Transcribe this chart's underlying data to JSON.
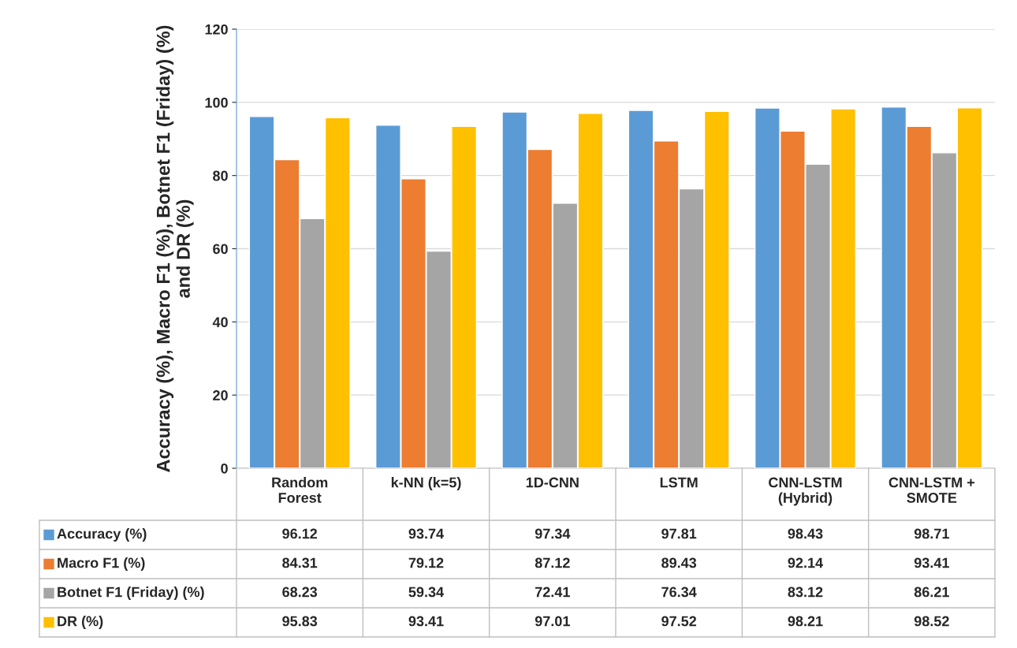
{
  "chart_data": {
    "type": "bar",
    "ylabel": "Accuracy (%), Macro F1 (%), Botnet F1 (Friday) (%)\nand DR (%)",
    "categories": [
      "Random\nForest",
      "k-NN (k=5)",
      "1D-CNN",
      "LSTM",
      "CNN-LSTM\n(Hybrid)",
      "CNN-LSTM +\nSMOTE"
    ],
    "series": [
      {
        "name": "Accuracy (%)",
        "color": "#5b9bd5",
        "values": [
          96.12,
          93.74,
          97.34,
          97.81,
          98.43,
          98.71
        ]
      },
      {
        "name": "Macro F1 (%)",
        "color": "#ed7d31",
        "values": [
          84.31,
          79.12,
          87.12,
          89.43,
          92.14,
          93.41
        ]
      },
      {
        "name": "Botnet F1 (Friday) (%)",
        "color": "#a5a5a5",
        "values": [
          68.23,
          59.34,
          72.41,
          76.34,
          83.12,
          86.21
        ]
      },
      {
        "name": "DR (%)",
        "color": "#ffc000",
        "values": [
          95.83,
          93.41,
          97.01,
          97.52,
          98.21,
          98.52
        ]
      }
    ],
    "ylim": [
      0,
      120
    ],
    "yticks": [
      0,
      20,
      40,
      60,
      80,
      100,
      120
    ],
    "grid": "y",
    "legend": "bottom",
    "data_labels": true
  }
}
